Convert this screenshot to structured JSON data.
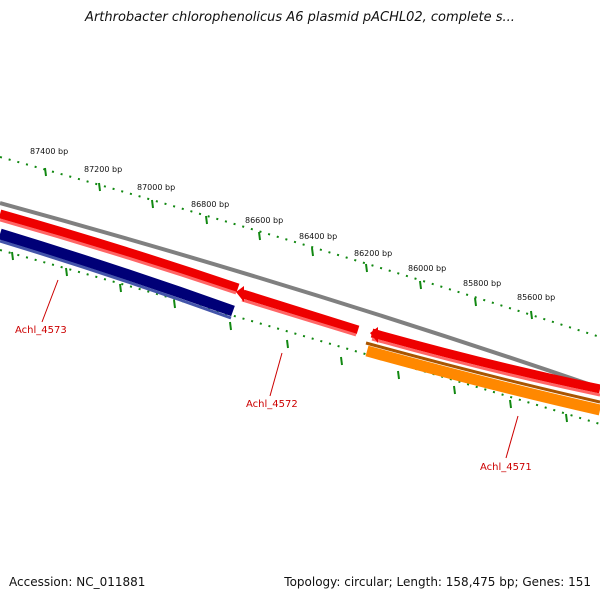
{
  "title": "Arthrobacter chlorophenolicus A6 plasmid pACHL02, complete s...",
  "footer": {
    "accession": "Accession: NC_011881",
    "topology": "Topology: circular; Length: 158,475 bp; Genes: 151"
  },
  "colors": {
    "backbone": "#808080",
    "tick_green": "#118811",
    "forward_gene": "#ee0000",
    "reverse_gene": "#ee0000",
    "gene_4573": "#000077",
    "gene_4571": "#ff8800",
    "label_red": "#cc0000"
  },
  "ticks": [
    {
      "bp": 87400,
      "label": "87400 bp"
    },
    {
      "bp": 87200,
      "label": "87200 bp"
    },
    {
      "bp": 87000,
      "label": "87000 bp"
    },
    {
      "bp": 86800,
      "label": "86800 bp"
    },
    {
      "bp": 86600,
      "label": "86600 bp"
    },
    {
      "bp": 86400,
      "label": "86400 bp"
    },
    {
      "bp": 86200,
      "label": "86200 bp"
    },
    {
      "bp": 86000,
      "label": "86000 bp"
    },
    {
      "bp": 85800,
      "label": "85800 bp"
    },
    {
      "bp": 85600,
      "label": "85600 bp"
    }
  ],
  "genes": [
    {
      "name": "Achl_4573",
      "strand": "reverse",
      "track": "outer-minus"
    },
    {
      "name": "Achl_4572",
      "strand": "reverse",
      "track": "inner"
    },
    {
      "name": "Achl_4571",
      "strand": "forward",
      "track": "outer-plus"
    }
  ]
}
